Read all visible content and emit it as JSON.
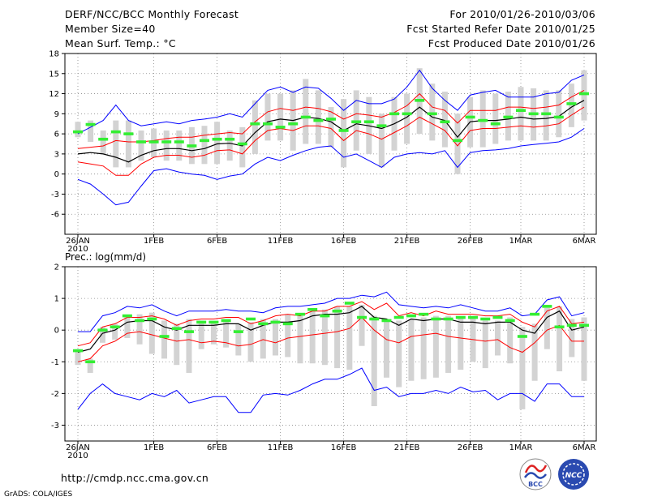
{
  "header": {
    "line1_left": "DERF/NCC/BCC Monthly Forecast",
    "line2_left": "Member Size=40",
    "line3_left": "Mean Surf. Temp.: °C",
    "line1_right": "For 2010/01/26-2010/03/06",
    "line2_right": "Fcst Started Refer Date 2010/01/25",
    "line3_right": "Fcst Produced Date 2010/01/26"
  },
  "footer": {
    "url": "http://cmdp.ncc.cma.gov.cn",
    "credit": "GrADS: COLA/IGES",
    "logo_left_text": "BCC",
    "logo_right_text": "NCC"
  },
  "colors": {
    "envelope": "#0000ff",
    "spread": "#ff0000",
    "mean": "#000000",
    "box": "#d3d3d3",
    "obs": "#33ee33",
    "grid": "#888888"
  },
  "chart_data": [
    {
      "type": "line",
      "title": "Mean Surf. Temp.: °C",
      "x_tick_labels": [
        "26JAN",
        "1FEB",
        "6FEB",
        "11FEB",
        "16FEB",
        "21FEB",
        "26FEB",
        "1MAR",
        "6MAR"
      ],
      "x_tick_days": [
        0,
        6,
        11,
        16,
        21,
        26,
        31,
        35,
        40
      ],
      "x_sub_label": "2010",
      "ylim": [
        -9,
        18
      ],
      "y_ticks": [
        -6,
        -3,
        0,
        3,
        6,
        9,
        12,
        15,
        18
      ],
      "series": [
        {
          "name": "max",
          "values": [
            -0.8,
            -1.5,
            -3.0,
            -4.6,
            -4.2,
            -1.8,
            0.5,
            0.8,
            0.3,
            0.0,
            -0.2,
            -0.8,
            -0.3,
            0.0,
            1.5,
            2.5,
            2.0,
            2.8,
            3.5,
            4.0,
            4.2,
            2.5,
            3.0,
            2.0,
            1.0,
            2.5,
            3.0,
            3.2,
            3.0,
            3.5,
            1.0,
            3.2,
            3.5,
            3.6,
            3.8,
            4.2,
            4.4,
            4.6,
            4.8,
            5.5,
            6.8
          ]
        },
        {
          "name": "min",
          "values": [
            6.0,
            7.0,
            8.0,
            10.3,
            8.0,
            7.2,
            7.5,
            7.8,
            7.5,
            8.0,
            8.2,
            8.5,
            9.0,
            8.5,
            10.5,
            12.5,
            13.0,
            12.2,
            13.0,
            12.8,
            11.3,
            9.5,
            11.0,
            10.5,
            10.5,
            11.2,
            13.0,
            15.5,
            12.8,
            11.0,
            9.5,
            11.8,
            12.2,
            12.5,
            11.5,
            11.5,
            11.5,
            12.0,
            12.2,
            14.0,
            14.8
          ]
        },
        {
          "name": "upper",
          "values": [
            3.8,
            4.0,
            4.2,
            5.0,
            4.8,
            4.8,
            5.0,
            5.3,
            5.5,
            5.5,
            5.8,
            6.0,
            6.2,
            6.0,
            7.8,
            9.3,
            9.8,
            9.5,
            10.0,
            9.8,
            9.3,
            8.2,
            9.0,
            8.8,
            8.5,
            9.2,
            10.2,
            12.0,
            10.0,
            9.5,
            7.6,
            9.5,
            9.5,
            9.5,
            10.0,
            10.0,
            9.8,
            10.0,
            10.3,
            11.5,
            12.5
          ]
        },
        {
          "name": "mean",
          "values": [
            3.0,
            3.2,
            3.0,
            2.5,
            1.8,
            2.8,
            3.5,
            3.8,
            3.8,
            3.5,
            3.8,
            4.5,
            4.6,
            4.2,
            6.2,
            7.8,
            8.2,
            8.0,
            8.5,
            8.3,
            7.8,
            6.5,
            7.5,
            7.2,
            6.8,
            7.5,
            8.5,
            10.0,
            8.5,
            8.0,
            5.5,
            7.8,
            8.0,
            8.0,
            8.2,
            8.5,
            8.2,
            8.3,
            8.6,
            10.0,
            11.0
          ]
        },
        {
          "name": "lower",
          "values": [
            1.8,
            1.5,
            1.2,
            -0.2,
            -0.2,
            1.5,
            2.5,
            2.8,
            2.8,
            2.5,
            2.8,
            3.5,
            3.6,
            3.0,
            5.0,
            6.5,
            6.8,
            6.5,
            7.2,
            7.2,
            6.8,
            5.0,
            6.5,
            6.0,
            5.2,
            6.2,
            7.2,
            8.5,
            7.5,
            6.5,
            4.2,
            6.5,
            6.8,
            6.8,
            7.0,
            7.2,
            7.0,
            7.2,
            7.5,
            8.8,
            10.0
          ]
        },
        {
          "name": "box_top",
          "values": [
            7.8,
            8.0,
            6.5,
            8.0,
            8.0,
            6.5,
            6.8,
            6.5,
            6.5,
            7.0,
            7.2,
            7.8,
            6.5,
            7.0,
            11.0,
            12.0,
            12.0,
            12.5,
            14.2,
            12.5,
            10.0,
            11.2,
            12.5,
            11.5,
            9.0,
            11.5,
            12.0,
            15.8,
            13.5,
            12.3,
            9.0,
            11.5,
            12.5,
            12.0,
            12.3,
            13.0,
            12.8,
            12.5,
            12.5,
            13.5,
            15.5
          ]
        },
        {
          "name": "box_bottom",
          "values": [
            5.5,
            4.8,
            3.0,
            1.0,
            1.0,
            2.0,
            2.5,
            2.0,
            2.0,
            1.5,
            1.5,
            1.5,
            2.0,
            1.0,
            3.0,
            5.0,
            5.0,
            3.5,
            4.5,
            4.5,
            4.0,
            1.0,
            3.5,
            3.0,
            1.0,
            3.5,
            4.5,
            6.0,
            5.0,
            4.0,
            0.0,
            4.0,
            4.0,
            4.5,
            5.0,
            5.0,
            5.0,
            5.0,
            5.5,
            7.0,
            8.0
          ]
        },
        {
          "name": "observed",
          "values": [
            6.3,
            7.4,
            5.2,
            6.3,
            6.0,
            4.8,
            4.8,
            4.8,
            4.8,
            4.2,
            5.0,
            5.2,
            5.2,
            4.5,
            7.5,
            7.5,
            7.0,
            7.5,
            8.5,
            8.0,
            8.2,
            6.5,
            7.8,
            7.8,
            7.2,
            9.0,
            9.0,
            11.0,
            9.0,
            7.8,
            5.0,
            8.5,
            8.0,
            7.5,
            8.5,
            9.5,
            9.0,
            9.0,
            8.5,
            10.5,
            12.0
          ]
        }
      ]
    },
    {
      "type": "line",
      "title": "Prec.: log(mm/d)",
      "x_tick_labels": [
        "26JAN",
        "1FEB",
        "6FEB",
        "11FEB",
        "16FEB",
        "21FEB",
        "26FEB",
        "1MAR",
        "6MAR"
      ],
      "x_tick_days": [
        0,
        6,
        11,
        16,
        21,
        26,
        31,
        35,
        40
      ],
      "x_sub_label": "2010",
      "ylim": [
        -3.5,
        2
      ],
      "y_ticks": [
        -3,
        -2,
        -1,
        0,
        1,
        2
      ],
      "series": [
        {
          "name": "max",
          "values": [
            -0.05,
            -0.05,
            0.45,
            0.55,
            0.75,
            0.7,
            0.8,
            0.6,
            0.45,
            0.6,
            0.6,
            0.6,
            0.65,
            0.6,
            0.6,
            0.55,
            0.7,
            0.75,
            0.75,
            0.8,
            0.85,
            1.0,
            1.0,
            1.1,
            1.05,
            1.2,
            0.8,
            0.75,
            0.7,
            0.75,
            0.7,
            0.8,
            0.7,
            0.6,
            0.6,
            0.7,
            0.45,
            0.5,
            0.95,
            1.05,
            0.45,
            0.55
          ]
        },
        {
          "name": "min",
          "values": [
            -2.5,
            -2.0,
            -1.7,
            -2.0,
            -2.1,
            -2.2,
            -2.0,
            -2.1,
            -1.9,
            -2.3,
            -2.2,
            -2.1,
            -2.1,
            -2.6,
            -2.6,
            -2.05,
            -2.0,
            -2.05,
            -1.9,
            -1.7,
            -1.55,
            -1.55,
            -1.4,
            -1.2,
            -1.9,
            -1.8,
            -2.1,
            -2.0,
            -2.0,
            -1.9,
            -2.0,
            -1.8,
            -1.95,
            -1.9,
            -2.2,
            -2.0,
            -2.0,
            -2.25,
            -1.7,
            -1.7,
            -2.1,
            -2.1
          ]
        },
        {
          "name": "upper",
          "values": [
            -0.5,
            -0.4,
            0.1,
            0.2,
            0.4,
            0.4,
            0.45,
            0.35,
            0.15,
            0.3,
            0.35,
            0.35,
            0.4,
            0.4,
            0.2,
            0.3,
            0.45,
            0.5,
            0.45,
            0.6,
            0.6,
            0.75,
            0.75,
            0.9,
            0.65,
            0.85,
            0.45,
            0.55,
            0.45,
            0.6,
            0.5,
            0.5,
            0.5,
            0.45,
            0.45,
            0.5,
            0.25,
            0.1,
            0.6,
            0.75,
            0.2,
            0.25
          ]
        },
        {
          "name": "mean",
          "values": [
            -0.7,
            -0.6,
            -0.1,
            0.0,
            0.25,
            0.3,
            0.3,
            0.1,
            0.0,
            0.15,
            0.15,
            0.15,
            0.2,
            0.2,
            0.0,
            0.15,
            0.25,
            0.25,
            0.3,
            0.45,
            0.5,
            0.5,
            0.55,
            0.75,
            0.4,
            0.35,
            0.15,
            0.35,
            0.3,
            0.35,
            0.35,
            0.25,
            0.25,
            0.2,
            0.25,
            0.25,
            0.0,
            -0.1,
            0.4,
            0.6,
            0.0,
            0.1
          ]
        },
        {
          "name": "lower",
          "values": [
            -1.0,
            -0.9,
            -0.5,
            -0.35,
            -0.1,
            -0.05,
            -0.15,
            -0.25,
            -0.35,
            -0.3,
            -0.4,
            -0.35,
            -0.4,
            -0.5,
            -0.45,
            -0.3,
            -0.4,
            -0.25,
            -0.2,
            -0.15,
            -0.1,
            -0.05,
            0.05,
            0.4,
            0.0,
            -0.3,
            -0.4,
            -0.2,
            -0.15,
            -0.1,
            -0.2,
            -0.25,
            -0.3,
            -0.35,
            -0.3,
            -0.55,
            -0.7,
            -0.4,
            0.0,
            0.15,
            -0.35,
            -0.35
          ]
        },
        {
          "name": "box_top",
          "values": [
            -0.6,
            -0.9,
            0.1,
            0.2,
            0.4,
            0.5,
            0.55,
            0.3,
            0.2,
            0.35,
            0.3,
            0.25,
            0.35,
            0.2,
            0.25,
            0.35,
            0.35,
            0.5,
            0.5,
            0.6,
            0.65,
            0.75,
            0.75,
            0.8,
            0.45,
            0.3,
            0.3,
            0.35,
            0.4,
            0.45,
            0.45,
            0.4,
            0.4,
            0.3,
            0.3,
            0.4,
            0.1,
            0.2,
            0.7,
            0.75,
            0.35,
            0.4
          ]
        },
        {
          "name": "box_bottom",
          "values": [
            -1.1,
            -1.35,
            -0.4,
            -0.3,
            -0.25,
            -0.45,
            -0.75,
            -0.9,
            -1.1,
            -1.35,
            -0.6,
            -0.45,
            -0.55,
            -0.8,
            -1.0,
            -0.9,
            -0.8,
            -0.85,
            -1.05,
            -1.05,
            -1.1,
            -1.2,
            -1.25,
            -0.5,
            -2.4,
            -1.5,
            -1.8,
            -1.6,
            -1.55,
            -1.5,
            -1.35,
            -1.25,
            -1.0,
            -1.2,
            -0.8,
            -1.05,
            -2.5,
            -1.6,
            -0.6,
            -1.3,
            -0.85,
            -1.6
          ]
        },
        {
          "name": "observed",
          "values": [
            -0.65,
            -1.0,
            0.0,
            0.1,
            0.45,
            0.3,
            0.35,
            -0.2,
            0.05,
            -0.05,
            0.25,
            0.25,
            0.3,
            -0.05,
            0.35,
            0.2,
            0.25,
            0.2,
            0.5,
            0.65,
            0.45,
            0.6,
            0.85,
            0.4,
            0.35,
            0.3,
            0.4,
            0.45,
            0.5,
            0.35,
            0.35,
            0.4,
            0.4,
            0.35,
            0.4,
            0.3,
            -0.2,
            0.5,
            0.75,
            0.1,
            0.15,
            0.15
          ]
        }
      ]
    }
  ]
}
